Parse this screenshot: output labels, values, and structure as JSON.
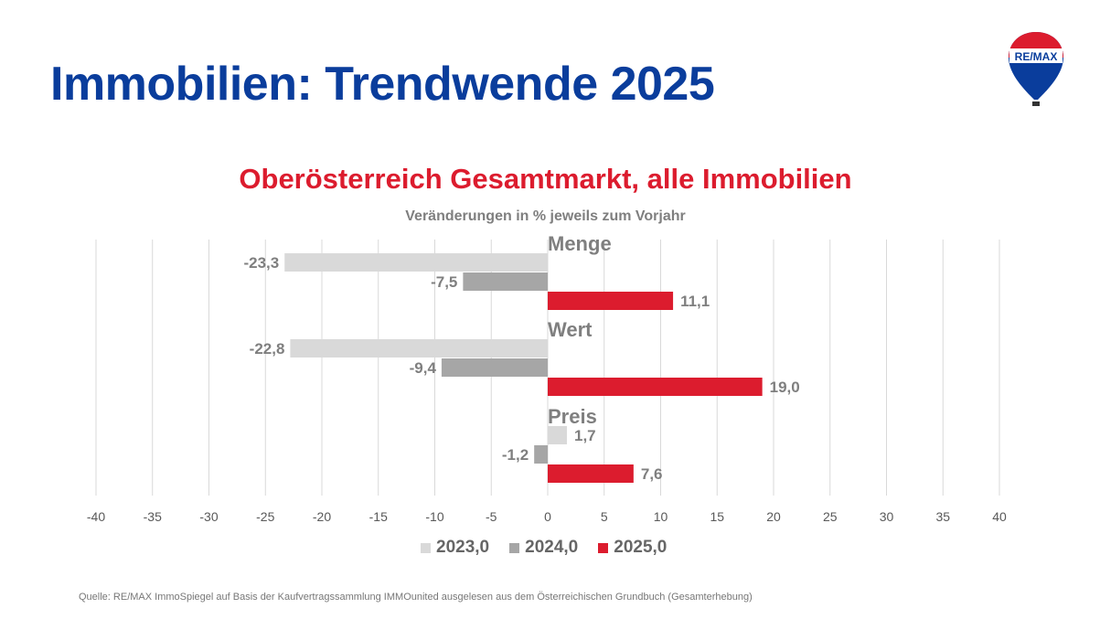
{
  "title": "Immobilien: Trendwende 2025",
  "logo": {
    "text": "RE/MAX",
    "colors": [
      "#dc1c2e",
      "#ffffff",
      "#0a3d9c"
    ]
  },
  "source": "Quelle: RE/MAX ImmoSpiegel auf Basis der Kaufvertragssammlung IMMOunited ausgelesen aus dem Österreichischen Grundbuch (Gesamterhebung)",
  "chart_data": {
    "type": "bar",
    "orientation": "horizontal",
    "title": "Oberösterreich Gesamtmarkt, alle Immobilien",
    "subtitle": "Veränderungen in % jeweils zum Vorjahr",
    "categories": [
      "Menge",
      "Wert",
      "Preis"
    ],
    "series": [
      {
        "name": "2023,0",
        "color": "#d9d9d9",
        "values": [
          -23.3,
          -22.8,
          1.7
        ],
        "labels": [
          "-23,3",
          "-22,8",
          "1,7"
        ]
      },
      {
        "name": "2024,0",
        "color": "#a6a6a6",
        "values": [
          -7.5,
          -9.4,
          -1.2
        ],
        "labels": [
          "-7,5",
          "-9,4",
          "-1,2"
        ]
      },
      {
        "name": "2025,0",
        "color": "#dc1c2e",
        "values": [
          11.1,
          19.0,
          7.6
        ],
        "labels": [
          "11,1",
          "19,0",
          "7,6"
        ]
      }
    ],
    "xlim": [
      -40,
      40
    ],
    "xticks": [
      "-40",
      "-35",
      "-30",
      "-25",
      "-20",
      "-15",
      "-10",
      "-5",
      "0",
      "5",
      "10",
      "15",
      "20",
      "25",
      "30",
      "35",
      "40"
    ],
    "grid": true,
    "legend": "bottom"
  }
}
